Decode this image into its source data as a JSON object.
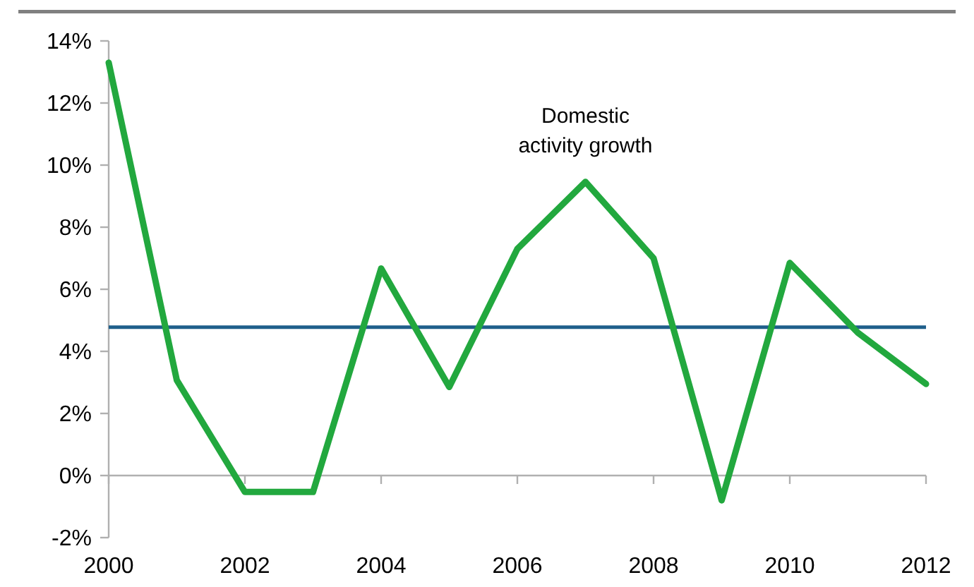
{
  "chart_data": {
    "type": "line",
    "x": [
      2000,
      2001,
      2002,
      2003,
      2004,
      2005,
      2006,
      2007,
      2008,
      2009,
      2010,
      2011,
      2012
    ],
    "series": [
      {
        "name": "Domestic activity growth",
        "color": "#22a83e",
        "values": [
          13.3,
          3.07,
          -0.53,
          -0.53,
          6.67,
          2.85,
          7.3,
          9.46,
          7.0,
          -0.8,
          6.85,
          4.6,
          2.95
        ]
      }
    ],
    "xlim": [
      2000,
      2012
    ],
    "xticks": [
      2000,
      2002,
      2004,
      2006,
      2008,
      2010,
      2012
    ],
    "ylim": [
      -2,
      14
    ],
    "yticks": [
      {
        "value": -2,
        "label": "-2%"
      },
      {
        "value": 0,
        "label": "0%"
      },
      {
        "value": 2,
        "label": "2%"
      },
      {
        "value": 4,
        "label": "4%"
      },
      {
        "value": 6,
        "label": "6%"
      },
      {
        "value": 8,
        "label": "8%"
      },
      {
        "value": 10,
        "label": "10%"
      },
      {
        "value": 12,
        "label": "12%"
      },
      {
        "value": 14,
        "label": "14%"
      }
    ],
    "ref_lines": [
      {
        "axis": "y",
        "value": 4.78,
        "color": "#1f5f8b"
      }
    ],
    "marker": "none",
    "line_style": "solid"
  }
}
